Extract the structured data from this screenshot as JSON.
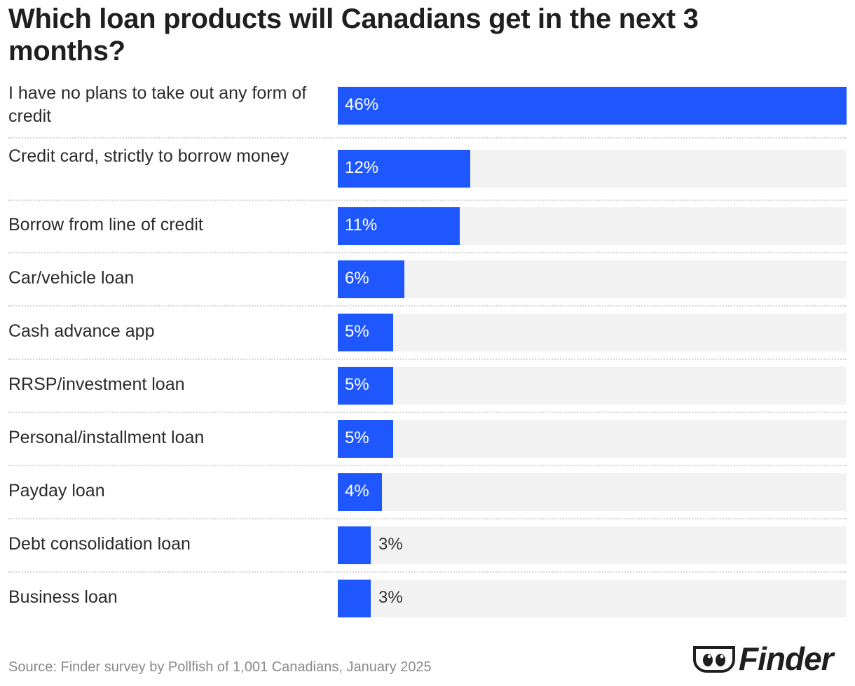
{
  "chart_data": {
    "type": "bar",
    "orientation": "horizontal",
    "title": "Which loan products will Canadians get in the next 3 months?",
    "categories": [
      "I have no plans to take out any form of credit",
      "Credit card, strictly to borrow money",
      "Borrow from line of credit",
      "Car/vehicle loan",
      "Cash advance app",
      "RRSP/investment loan",
      "Personal/installment loan",
      "Payday loan",
      "Debt consolidation loan",
      "Business loan"
    ],
    "values": [
      46,
      12,
      11,
      6,
      5,
      5,
      5,
      4,
      3,
      3
    ],
    "value_labels": [
      "46%",
      "12%",
      "11%",
      "6%",
      "5%",
      "5%",
      "5%",
      "4%",
      "3%",
      "3%"
    ],
    "xlim": [
      0,
      46
    ],
    "grid": false,
    "legend": "none",
    "bar_color": "#1f57ff",
    "track_color": "#f2f2f2"
  },
  "source": "Source: Finder survey by Pollfish of 1,001 Canadians, January 2025",
  "brand": {
    "name": "Finder",
    "logo_icon": "eyes-icon"
  }
}
